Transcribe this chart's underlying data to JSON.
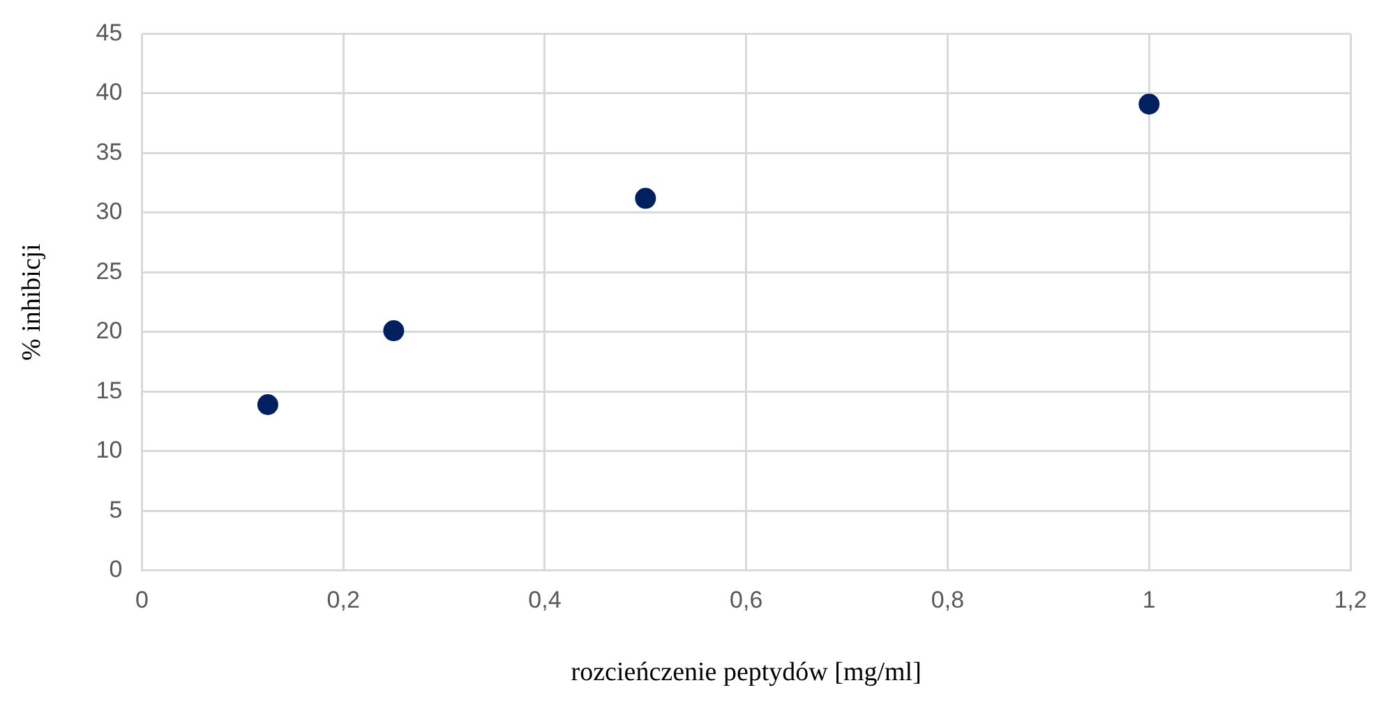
{
  "chart_data": {
    "type": "scatter",
    "xlabel": "rozcieńczenie peptydów [mg/ml]",
    "ylabel": "% inhibicji",
    "x": [
      0.125,
      0.25,
      0.5,
      1
    ],
    "series": [
      {
        "color": "#002060",
        "values": [
          13.9,
          20.1,
          31.2,
          39.1
        ]
      }
    ],
    "xlim": [
      0,
      1.2
    ],
    "xticks": [
      0,
      {
        "value": 0.2,
        "label": "0,2"
      },
      {
        "value": 0.4,
        "label": "0,4"
      },
      {
        "value": 0.6,
        "label": "0,6"
      },
      {
        "value": 0.8,
        "label": "0,8"
      },
      1,
      {
        "value": 1.2,
        "label": "1,2"
      }
    ],
    "ylim": [
      0,
      45
    ],
    "yticks": [
      0,
      5,
      10,
      15,
      20,
      25,
      30,
      35,
      40,
      45
    ],
    "grid": true,
    "marker": "circle"
  }
}
